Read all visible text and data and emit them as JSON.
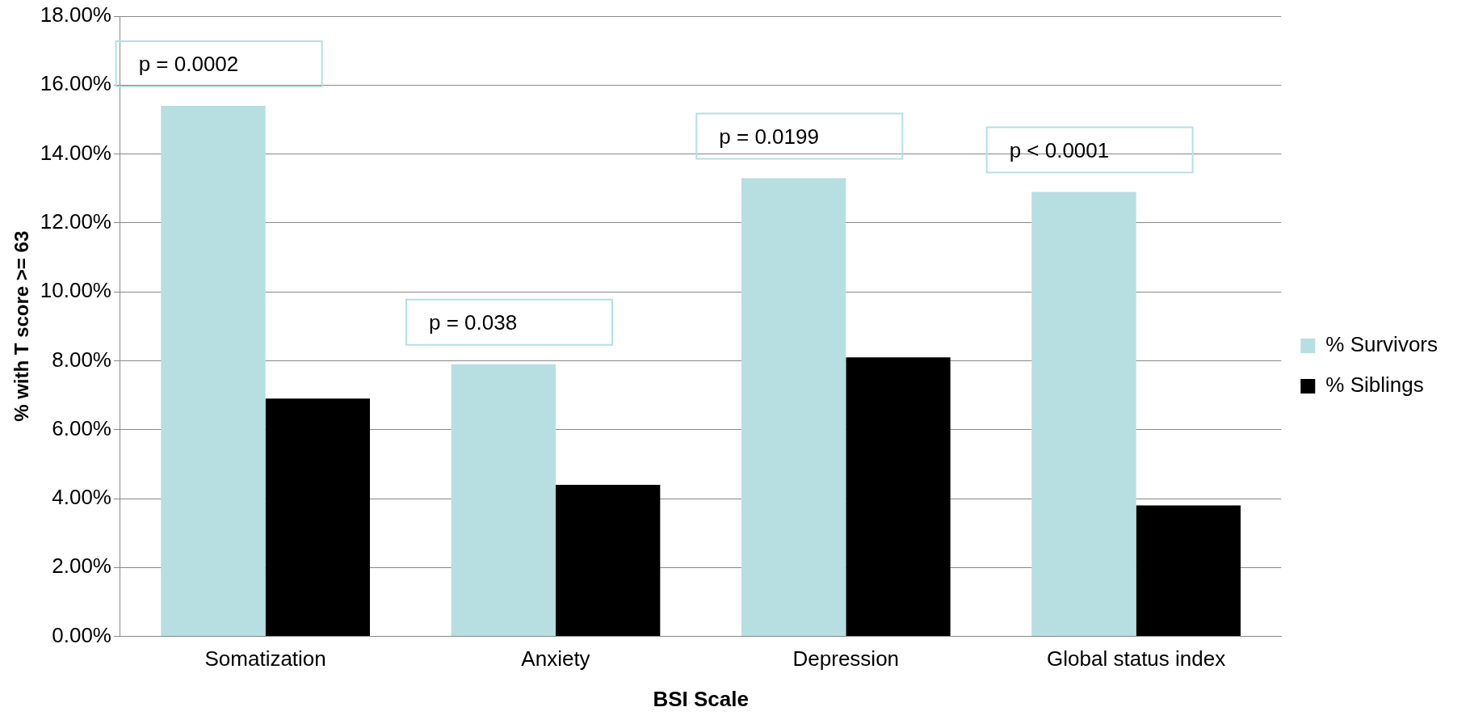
{
  "chart_data": {
    "type": "bar",
    "xlabel": "BSI Scale",
    "ylabel": "% with T score >= 63",
    "categories": [
      "Somatization",
      "Anxiety",
      "Depression",
      "Global status index"
    ],
    "series": [
      {
        "name": "% Survivors",
        "color": "#b7dfe1",
        "values": [
          15.4,
          7.9,
          13.3,
          12.9
        ]
      },
      {
        "name": "% Siblings",
        "color": "#000000",
        "values": [
          6.9,
          4.4,
          8.1,
          3.8
        ]
      }
    ],
    "ylim": [
      0,
      18
    ],
    "yticks": [
      {
        "value": 0,
        "label": "0.00%"
      },
      {
        "value": 2,
        "label": "2.00%"
      },
      {
        "value": 4,
        "label": "4.00%"
      },
      {
        "value": 6,
        "label": "6.00%"
      },
      {
        "value": 8,
        "label": "8.00%"
      },
      {
        "value": 10,
        "label": "10.00%"
      },
      {
        "value": 12,
        "label": "12.00%"
      },
      {
        "value": 14,
        "label": "14.00%"
      },
      {
        "value": 16,
        "label": "16.00%"
      },
      {
        "value": 18,
        "label": "18.00%"
      }
    ],
    "grid": "y",
    "legend": "right",
    "annotations": [
      "p = 0.0002",
      "p = 0.038",
      "p = 0.0199",
      "p < 0.0001"
    ]
  }
}
